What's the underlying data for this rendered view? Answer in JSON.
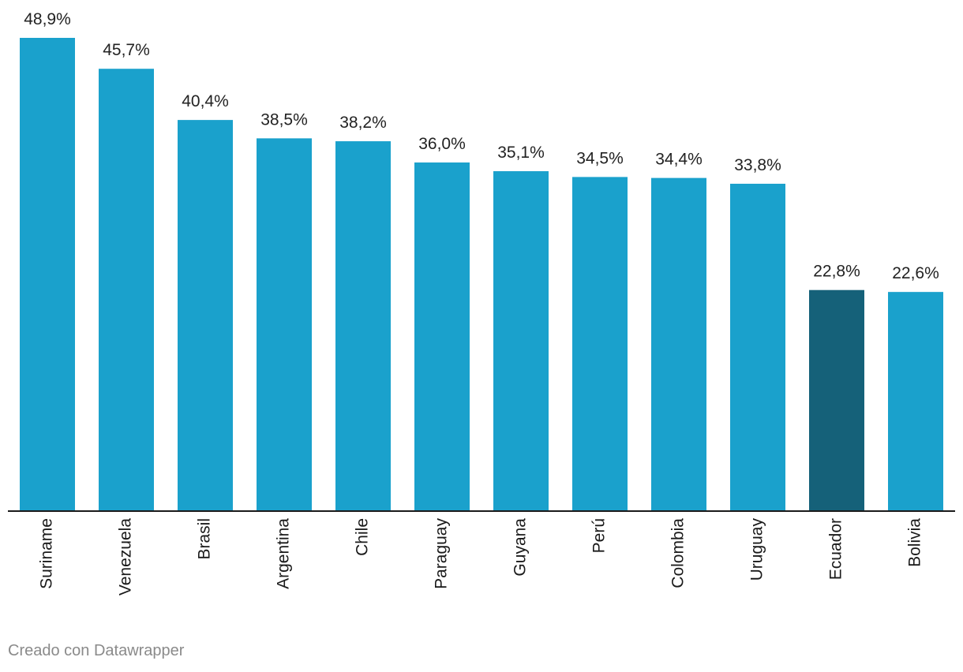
{
  "chart_data": {
    "type": "bar",
    "title": "",
    "xlabel": "",
    "ylabel": "",
    "ylim": [
      0,
      48.9
    ],
    "grid": false,
    "value_suffix": "%",
    "decimal_separator": ",",
    "categories": [
      "Suriname",
      "Venezuela",
      "Brasil",
      "Argentina",
      "Chile",
      "Paraguay",
      "Guyana",
      "Perú",
      "Colombia",
      "Uruguay",
      "Ecuador",
      "Bolivia"
    ],
    "values": [
      48.9,
      45.7,
      40.4,
      38.5,
      38.2,
      36.0,
      35.1,
      34.5,
      34.4,
      33.8,
      22.8,
      22.6
    ],
    "bar_color": "#1aa1cc",
    "highlight_color": "#156179",
    "highlight_category": "Ecuador"
  },
  "footer": {
    "credit": "Creado con Datawrapper"
  }
}
